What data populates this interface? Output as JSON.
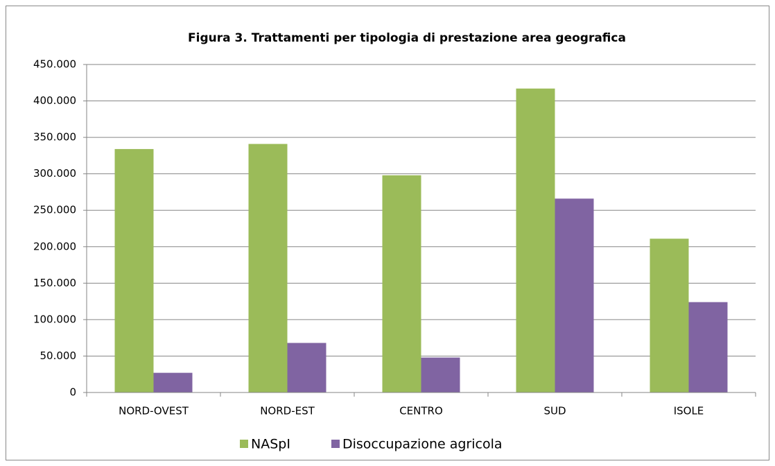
{
  "chart_data": {
    "type": "bar",
    "title": "Figura 3. Trattamenti per tipologia di prestazione area geografica",
    "categories": [
      "NORD-OVEST",
      "NORD-EST",
      "CENTRO",
      "SUD",
      "ISOLE"
    ],
    "series": [
      {
        "name": "NASpI",
        "color": "#9bbb59",
        "values": [
          334000,
          341000,
          298000,
          417000,
          211000
        ]
      },
      {
        "name": "Disoccupazione agricola",
        "color": "#8064a2",
        "values": [
          27000,
          68000,
          48000,
          266000,
          124000
        ]
      }
    ],
    "ylim": [
      0,
      450000
    ],
    "yticks": [
      0,
      {
        "value": 50000,
        "label": "50.000"
      },
      {
        "value": 100000,
        "label": "100.000"
      },
      {
        "value": 150000,
        "label": "150.000"
      },
      {
        "value": 200000,
        "label": "200.000"
      },
      {
        "value": 250000,
        "label": "250.000"
      },
      {
        "value": 300000,
        "label": "300.000"
      },
      {
        "value": 350000,
        "label": "350.000"
      },
      {
        "value": 400000,
        "label": "400.000"
      },
      {
        "value": 450000,
        "label": "450.000"
      }
    ],
    "grid": true,
    "legend": "bottom"
  }
}
